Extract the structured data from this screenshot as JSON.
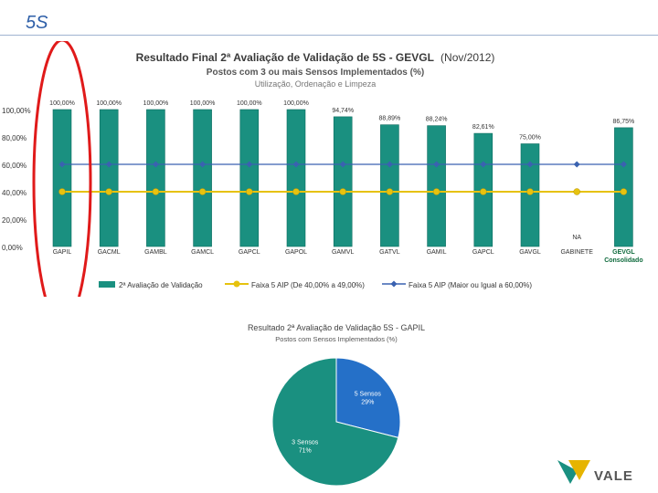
{
  "slide": {
    "title": "5S"
  },
  "colors": {
    "bar": "#1a9080",
    "barDark": "#0f6e62",
    "pieBlue": "#2570c8",
    "pieTeal": "#1a9080",
    "yellow": "#e6c20f",
    "blue": "#3a62b0",
    "circle": "#e01a1a"
  },
  "chart_data": [
    {
      "type": "bar",
      "title": "Resultado Final 2ª Avaliação de Validação de 5S - GEVGL",
      "title_suffix": "(Nov/2012)",
      "subtitle": "Postos com 3 ou mais Sensos Implementados (%)",
      "subtitle2": "Utilização, Ordenação e Limpeza",
      "categories": [
        "GAPIL",
        "GACML",
        "GAMBL",
        "GAMCL",
        "GAPCL",
        "GAPOL",
        "GAMVL",
        "GATVL",
        "GAMIL",
        "GAPCL",
        "GAVGL",
        "GABINETE",
        "GEVGL Consolidado"
      ],
      "values": [
        100,
        100,
        100,
        100,
        100,
        100,
        94.74,
        88.89,
        88.24,
        82.61,
        75,
        null,
        86.75
      ],
      "value_labels": [
        "100,00%",
        "100,00%",
        "100,00%",
        "100,00%",
        "100,00%",
        "100,00%",
        "94,74%",
        "88,89%",
        "88,24%",
        "82,61%",
        "75,00%",
        "NA",
        "86,75%"
      ],
      "yticks": [
        "100,00%",
        "80,00%",
        "60,00%",
        "40,00%",
        "20,00%",
        "0,00%"
      ],
      "ylim": [
        0,
        100
      ],
      "series": [
        {
          "name": "2ª Avaliação de Validação",
          "kind": "bar"
        },
        {
          "name": "Faixa 5 AIP (De 40,00% a 49,00%)",
          "kind": "line",
          "value": 40
        },
        {
          "name": "Faixa 5 AIP (Maior ou Igual a 60,00%)",
          "kind": "line",
          "value": 60
        }
      ],
      "highlighted_category": "GAPIL"
    },
    {
      "type": "pie",
      "title": "Resultado 2ª Avaliação de Validação 5S - GAPIL",
      "subtitle": "Postos com Sensos Implementados (%)",
      "slices": [
        {
          "label": "5 Sensos",
          "pct_label": "29%",
          "value": 29
        },
        {
          "label": "3 Sensos",
          "pct_label": "71%",
          "value": 71
        }
      ]
    }
  ],
  "logo": {
    "text": "VALE"
  }
}
